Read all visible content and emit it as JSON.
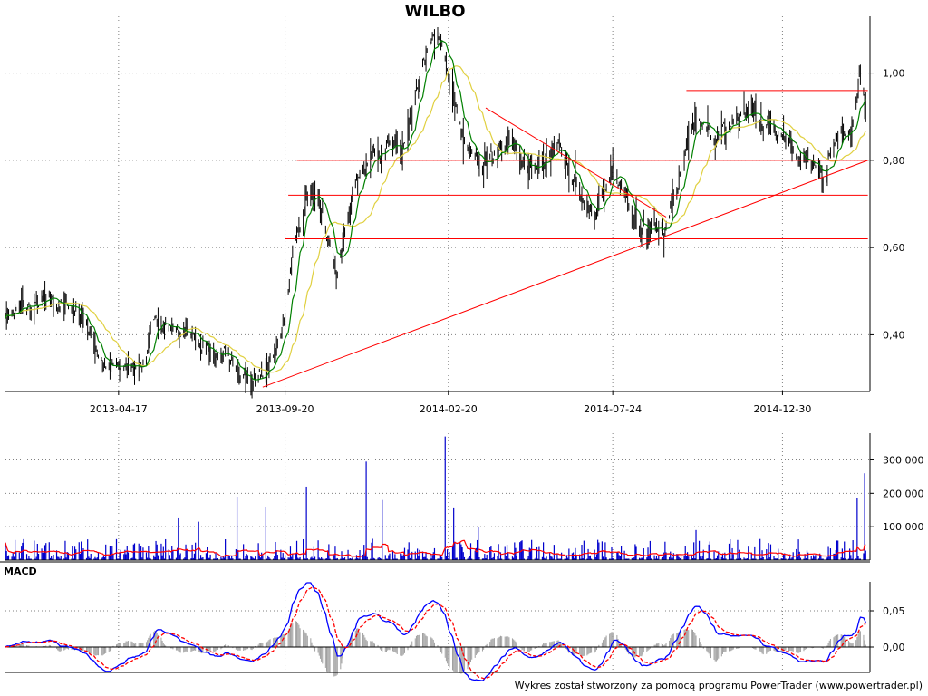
{
  "title": "WILBO",
  "footer": "Wykres został stworzony za pomocą programu PowerTrader (www.powertrader.pl)",
  "macd_label": "MACD",
  "colors": {
    "candle": "#000000",
    "short_ma": "#008000",
    "long_ma": "#e0d040",
    "trendline": "#ff0000",
    "volume_bar": "#0000cc",
    "volume_ma": "#ff0000",
    "macd_line": "#0000ff",
    "signal_line": "#ff0000",
    "histogram": "#a0a0a0",
    "grid": "#808080"
  },
  "chart_data": [
    {
      "type": "line",
      "name": "price",
      "x_ticks": [
        "2013-04-17",
        "2013-09-20",
        "2014-02-20",
        "2014-07-24",
        "2014-12-30"
      ],
      "y_ticks": [
        "0,40",
        "0,60",
        "0,80",
        "1,00"
      ],
      "ylim": [
        0.27,
        1.13
      ],
      "grid": true,
      "trendlines": {
        "horizontal": [
          {
            "y": 0.96,
            "from": "2014-10-01",
            "to": "2015-03-20"
          },
          {
            "y": 0.89,
            "from": "2014-09-17",
            "to": "2015-03-20"
          },
          {
            "y": 0.8,
            "from": "2013-10-01",
            "to": "2015-03-20"
          },
          {
            "y": 0.72,
            "from": "2013-09-23",
            "to": "2015-03-20"
          },
          {
            "y": 0.62,
            "from": "2013-09-20",
            "to": "2015-03-20"
          }
        ],
        "sloped": [
          {
            "from_date": "2013-08-30",
            "from_y": 0.28,
            "to_date": "2015-03-20",
            "to_y": 0.8
          },
          {
            "from_date": "2014-03-27",
            "from_y": 0.92,
            "to_date": "2014-09-12",
            "to_y": 0.67
          }
        ]
      },
      "anchors": [
        [
          "2013-01-01",
          0.45
        ],
        [
          "2013-01-25",
          0.46
        ],
        [
          "2013-02-15",
          0.47
        ],
        [
          "2013-03-10",
          0.46
        ],
        [
          "2013-03-25",
          0.39
        ],
        [
          "2013-04-05",
          0.31
        ],
        [
          "2013-04-25",
          0.33
        ],
        [
          "2013-05-10",
          0.34
        ],
        [
          "2013-05-25",
          0.44
        ],
        [
          "2013-06-15",
          0.41
        ],
        [
          "2013-07-05",
          0.38
        ],
        [
          "2013-07-25",
          0.34
        ],
        [
          "2013-08-10",
          0.3
        ],
        [
          "2013-08-25",
          0.28
        ],
        [
          "2013-09-05",
          0.32
        ],
        [
          "2013-09-20",
          0.43
        ],
        [
          "2013-09-28",
          0.62
        ],
        [
          "2013-10-10",
          0.7
        ],
        [
          "2013-10-25",
          0.7
        ],
        [
          "2013-11-08",
          0.55
        ],
        [
          "2013-11-25",
          0.75
        ],
        [
          "2013-12-10",
          0.82
        ],
        [
          "2013-12-25",
          0.85
        ],
        [
          "2014-01-05",
          0.79
        ],
        [
          "2014-01-20",
          0.92
        ],
        [
          "2014-02-01",
          1.05
        ],
        [
          "2014-02-12",
          1.07
        ],
        [
          "2014-02-25",
          0.93
        ],
        [
          "2014-03-10",
          0.82
        ],
        [
          "2014-03-25",
          0.8
        ],
        [
          "2014-04-15",
          0.84
        ],
        [
          "2014-05-10",
          0.78
        ],
        [
          "2014-06-05",
          0.81
        ],
        [
          "2014-06-25",
          0.72
        ],
        [
          "2014-07-10",
          0.7
        ],
        [
          "2014-07-25",
          0.76
        ],
        [
          "2014-08-10",
          0.7
        ],
        [
          "2014-08-25",
          0.65
        ],
        [
          "2014-09-10",
          0.64
        ],
        [
          "2014-09-25",
          0.76
        ],
        [
          "2014-10-10",
          0.88
        ],
        [
          "2014-10-25",
          0.85
        ],
        [
          "2014-11-10",
          0.87
        ],
        [
          "2014-11-25",
          0.91
        ],
        [
          "2014-12-10",
          0.89
        ],
        [
          "2014-12-30",
          0.88
        ],
        [
          "2015-01-20",
          0.8
        ],
        [
          "2015-02-05",
          0.75
        ],
        [
          "2015-02-20",
          0.85
        ],
        [
          "2015-03-05",
          0.86
        ],
        [
          "2015-03-12",
          0.98
        ],
        [
          "2015-03-18",
          0.91
        ]
      ]
    },
    {
      "type": "bar",
      "name": "volume",
      "y_ticks": [
        "100 000",
        "200 000",
        "300 000"
      ],
      "ylim": [
        0,
        380000
      ],
      "grid": true,
      "spikes": [
        [
          "2013-06-12",
          125000
        ],
        [
          "2013-07-01",
          115000
        ],
        [
          "2013-08-06",
          190000
        ],
        [
          "2013-09-02",
          160000
        ],
        [
          "2013-10-10",
          220000
        ],
        [
          "2013-12-05",
          295000
        ],
        [
          "2013-12-20",
          180000
        ],
        [
          "2014-02-17",
          370000
        ],
        [
          "2014-02-25",
          155000
        ],
        [
          "2014-03-20",
          100000
        ],
        [
          "2014-10-10",
          90000
        ],
        [
          "2015-03-10",
          185000
        ],
        [
          "2015-03-17",
          260000
        ]
      ]
    },
    {
      "type": "line",
      "name": "MACD",
      "y_ticks": [
        "0,00",
        "0,05"
      ],
      "ylim": [
        -0.035,
        0.09
      ],
      "grid": true
    }
  ]
}
